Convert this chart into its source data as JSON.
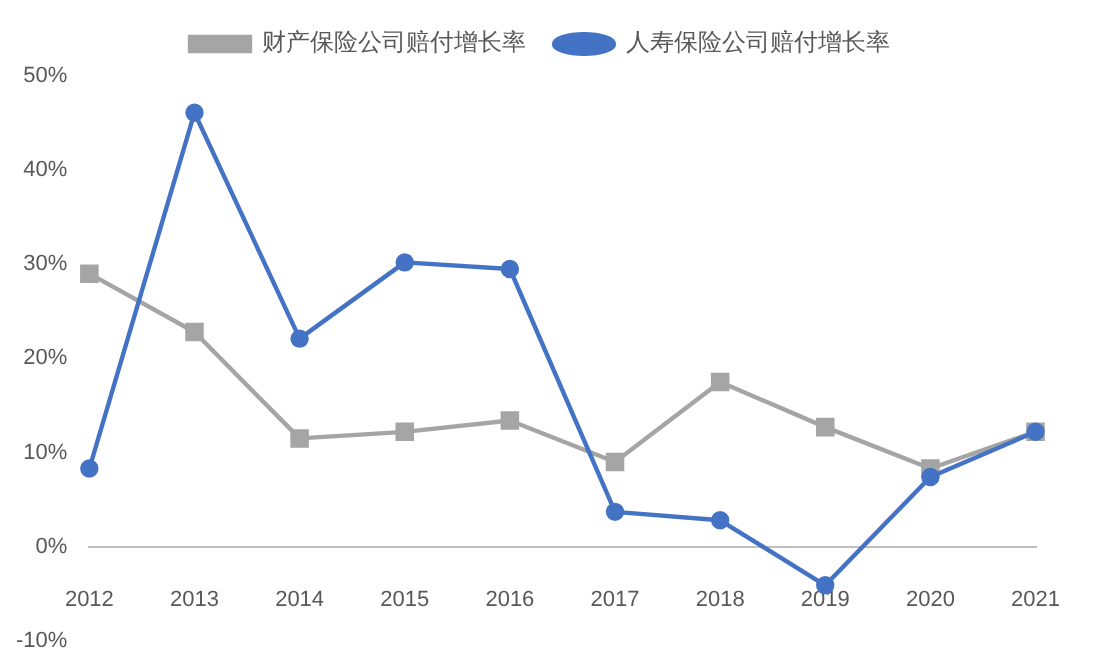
{
  "chart_data": {
    "type": "line",
    "categories": [
      "2012",
      "2013",
      "2014",
      "2015",
      "2016",
      "2017",
      "2018",
      "2019",
      "2020",
      "2021"
    ],
    "series": [
      {
        "name": "财产保险公司赔付增长率",
        "color": "#a5a5a5",
        "marker": "square",
        "values": [
          29.0,
          22.8,
          11.5,
          12.2,
          13.4,
          9.0,
          17.5,
          12.7,
          8.3,
          12.2
        ]
      },
      {
        "name": "人寿保险公司赔付增长率",
        "color": "#4472c4",
        "marker": "circle",
        "values": [
          8.3,
          46.1,
          22.1,
          30.2,
          29.5,
          3.7,
          2.8,
          -4.1,
          7.4,
          12.2
        ]
      }
    ],
    "ylim": [
      -10,
      50
    ],
    "yticks": [
      {
        "value": -10,
        "label": "-10%"
      },
      {
        "value": 0,
        "label": "0%"
      },
      {
        "value": 10,
        "label": "10%"
      },
      {
        "value": 20,
        "label": "20%"
      },
      {
        "value": 30,
        "label": "30%"
      },
      {
        "value": 40,
        "label": "40%"
      },
      {
        "value": 50,
        "label": "50%"
      }
    ],
    "grid": false,
    "legend": "top",
    "line_style": "solid"
  }
}
